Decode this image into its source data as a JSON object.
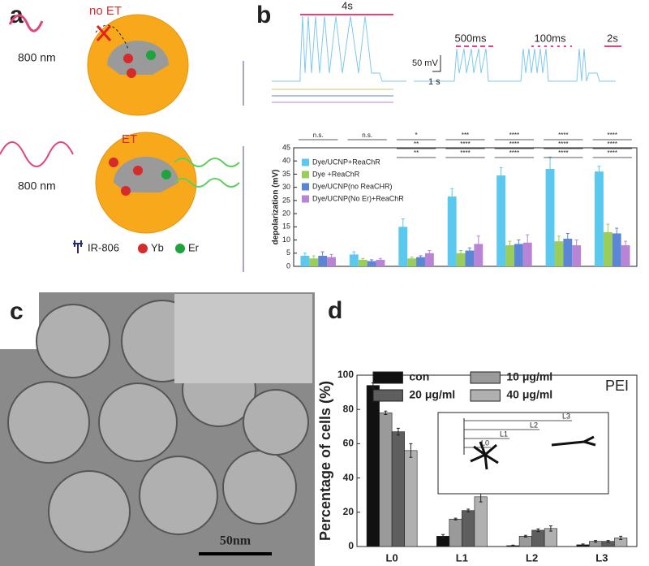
{
  "panel_labels": [
    "a",
    "b",
    "c",
    "d"
  ],
  "diagram": {
    "no_et": "no ET",
    "et": "ET",
    "wavelength_top": "800 nm",
    "wavelength_bottom": "800 nm",
    "legend": [
      "IR-806",
      "Yb",
      "Er"
    ]
  },
  "traces": {
    "labels": [
      "4s",
      "500ms",
      "100ms",
      "2s"
    ],
    "scale_y": "50 mV",
    "scale_x": "1 s"
  },
  "micrograph": {
    "scale_bar": "50nm"
  },
  "chart_data": [
    {
      "type": "bar",
      "y_label": "depolarization (mV)",
      "categories": [
        null,
        null,
        null,
        null,
        null,
        null,
        null
      ],
      "ylim": [
        0,
        45
      ],
      "yticks": [
        0,
        5,
        10,
        15,
        20,
        25,
        30,
        35,
        40,
        45
      ],
      "series": [
        {
          "name": "Dye/UCNP+ReaChR",
          "color": "#5bc8ef",
          "values": [
            4,
            4.5,
            15,
            26.5,
            34.5,
            37,
            36
          ],
          "errors": [
            1,
            1,
            3,
            3,
            3,
            4.5,
            2
          ]
        },
        {
          "name": "Dye +ReaChR",
          "color": "#9acd5a",
          "values": [
            3,
            2.5,
            3,
            5,
            8,
            9.5,
            13
          ],
          "errors": [
            1,
            0.5,
            0.5,
            1,
            1.5,
            2,
            3
          ]
        },
        {
          "name": "Dye/UCNP(no ReaCHR)",
          "color": "#5b86d6",
          "values": [
            4,
            2,
            3.5,
            6,
            8.5,
            10.5,
            12.5
          ],
          "errors": [
            1.5,
            0.5,
            0.5,
            1,
            1.5,
            2,
            2
          ]
        },
        {
          "name": "Dye/UCNP(No Er)+ReaChR",
          "color": "#b784d6",
          "values": [
            3.5,
            2.5,
            5,
            8.5,
            9,
            8,
            8
          ],
          "errors": [
            1,
            0.5,
            1,
            3,
            3,
            2,
            1.5
          ]
        }
      ],
      "annotations": [
        [
          "n.s."
        ],
        [
          "n.s."
        ],
        [
          "*",
          "**",
          "**"
        ],
        [
          "***",
          "****",
          "****"
        ],
        [
          "****",
          "****",
          "****"
        ],
        [
          "****",
          "****",
          "****"
        ],
        [
          "****",
          "****",
          "****"
        ]
      ]
    },
    {
      "type": "bar",
      "y_label": "Percentage of cells (%)",
      "categories": [
        "L0",
        "L1",
        "L2",
        "L3"
      ],
      "ylim": [
        0,
        100
      ],
      "yticks": [
        0,
        20,
        40,
        60,
        80,
        100
      ],
      "series": [
        {
          "name": "con",
          "color": "#111111",
          "values": [
            94,
            6,
            0.5,
            1
          ],
          "errors": [
            1.5,
            1,
            0.3,
            0.5
          ]
        },
        {
          "name": "10 μg/ml",
          "color": "#9a9a9a",
          "values": [
            78,
            16,
            6,
            3
          ],
          "errors": [
            1,
            0.5,
            0.5,
            0.5
          ]
        },
        {
          "name": "20 μg/ml",
          "color": "#5e5e5e",
          "values": [
            67,
            21,
            9.5,
            3
          ],
          "errors": [
            2,
            0.8,
            0.8,
            0.5
          ]
        },
        {
          "name": "40 μg/ml",
          "color": "#b0b0b0",
          "values": [
            56,
            29,
            10.5,
            5
          ],
          "errors": [
            4,
            3,
            1.5,
            1
          ]
        }
      ],
      "annotation": "PEI",
      "inset_labels": [
        "L3",
        "L2",
        "L1",
        "L0"
      ]
    }
  ]
}
